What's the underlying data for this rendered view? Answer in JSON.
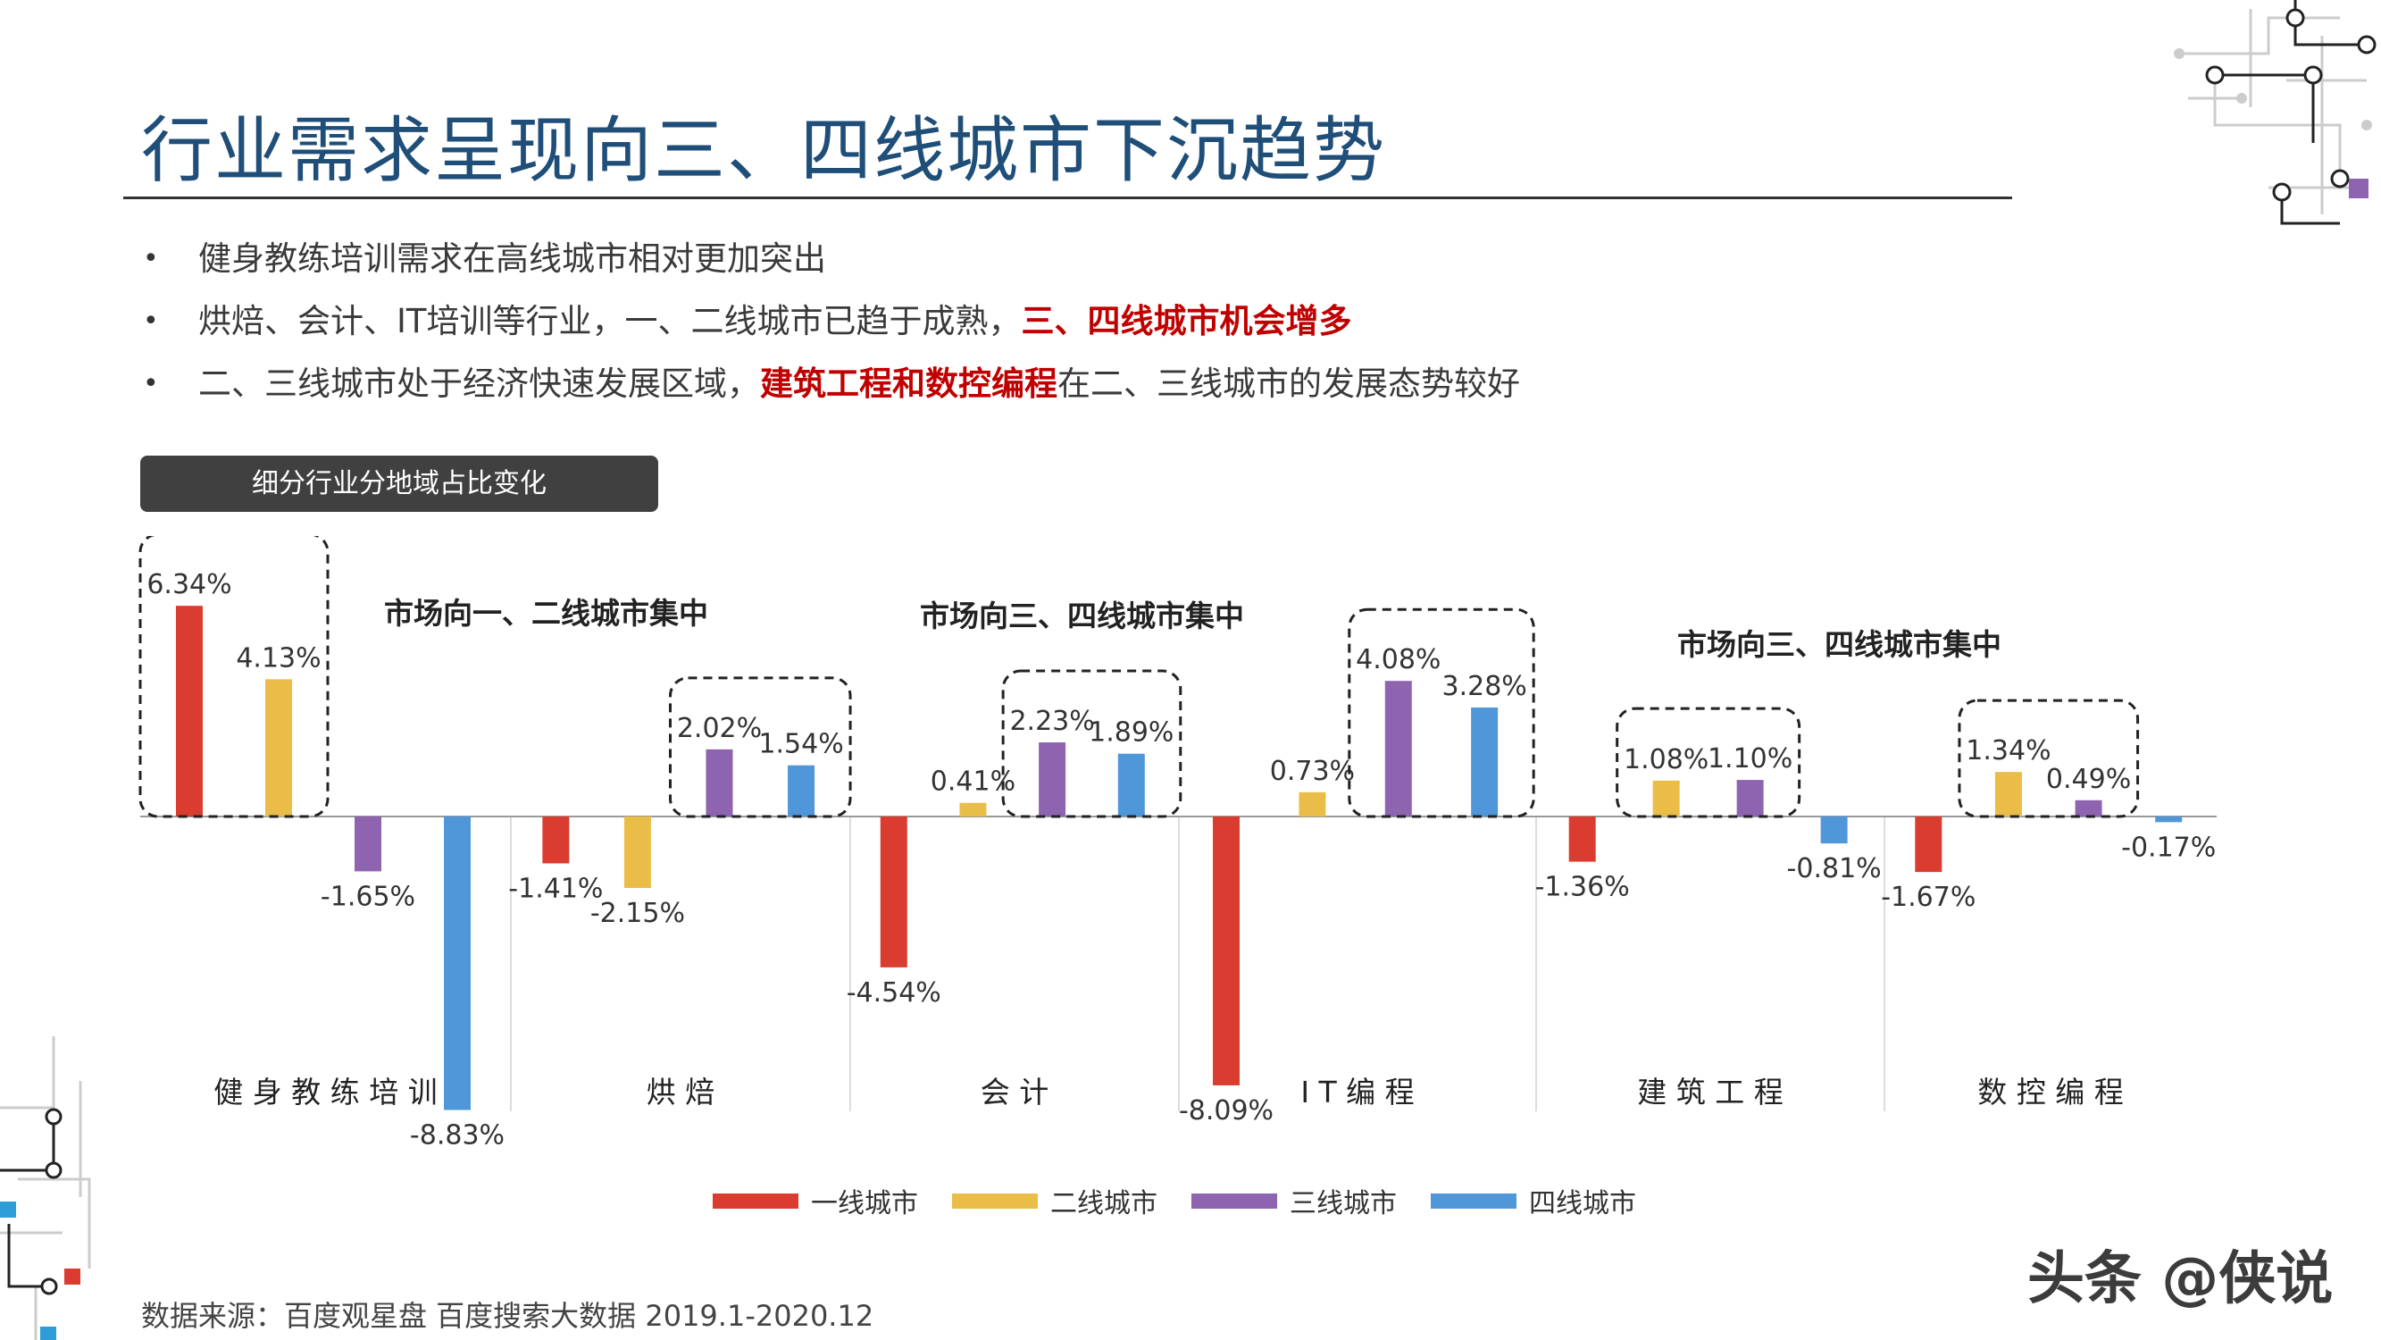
{
  "title": "行业需求呈现向三、四线城市下沉趋势",
  "bullets": [
    {
      "parts": [
        {
          "text": "健身教练培训需求在高线城市相对更加突出",
          "highlight": false
        }
      ]
    },
    {
      "parts": [
        {
          "text": "烘焙、会计、IT培训等行业，一、二线城市已趋于成熟，",
          "highlight": false
        },
        {
          "text": "三、四线城市机会增多",
          "highlight": true
        }
      ]
    },
    {
      "parts": [
        {
          "text": "二、三线城市处于经济快速发展区域，",
          "highlight": false
        },
        {
          "text": "建筑工程和数控编程",
          "highlight": true
        },
        {
          "text": "在二、三线城市的发展态势较好",
          "highlight": false
        }
      ]
    }
  ],
  "section_label": "细分行业分地域占比变化",
  "chart_data": {
    "type": "bar",
    "categories": [
      "健身教练培训",
      "烘焙",
      "会计",
      "IT编程",
      "建筑工程",
      "数控编程"
    ],
    "category_labels": [
      "健 身 教 练 培 训",
      "烘  焙",
      "会  计",
      "I T 编 程",
      "建 筑 工 程",
      "数 控 编 程"
    ],
    "series": [
      {
        "name": "一线城市",
        "color": "#db3c30",
        "values": [
          6.34,
          -1.41,
          -4.54,
          -8.09,
          -1.36,
          -1.67
        ],
        "labels": [
          "6.34%",
          "-1.41%",
          "-4.54%",
          "-8.09%",
          "-1.36%",
          "-1.67%"
        ]
      },
      {
        "name": "二线城市",
        "color": "#e9bd48",
        "values": [
          4.13,
          -2.15,
          0.41,
          0.73,
          1.08,
          1.34
        ],
        "labels": [
          "4.13%",
          "-2.15%",
          "0.41%",
          "0.73%",
          "1.08%",
          "1.34%"
        ]
      },
      {
        "name": "三线城市",
        "color": "#8e64b0",
        "values": [
          -1.65,
          2.02,
          2.23,
          4.08,
          1.1,
          0.49
        ],
        "labels": [
          "-1.65%",
          "2.02%",
          "2.23%",
          "4.08%",
          "1.10%",
          "0.49%"
        ]
      },
      {
        "name": "四线城市",
        "color": "#4f97d8",
        "values": [
          -8.83,
          1.54,
          1.89,
          3.28,
          -0.81,
          -0.17
        ],
        "labels": [
          "-8.83%",
          "1.54%",
          "1.89%",
          "3.28%",
          "-0.81%",
          "-0.17%"
        ]
      }
    ],
    "annotations": [
      {
        "text": "市场向一、二线城市集中",
        "group": 0
      },
      {
        "text": "市场向三、四线城市集中",
        "group": 2
      },
      {
        "text": "市场向三、四线城市集中",
        "group": 4
      }
    ],
    "highlight_boxes": [
      {
        "group": 0,
        "series": [
          0,
          1
        ]
      },
      {
        "group": 1,
        "series": [
          2,
          3
        ]
      },
      {
        "group": 2,
        "series": [
          2,
          3
        ]
      },
      {
        "group": 3,
        "series": [
          2,
          3
        ]
      },
      {
        "group": 4,
        "series": [
          1,
          2
        ]
      },
      {
        "group": 5,
        "series": [
          1,
          2
        ]
      }
    ],
    "legend_position": "bottom",
    "grid": false
  },
  "source": "数据来源：百度观星盘 百度搜索大数据 2019.1-2020.12",
  "watermark": "头条 @侠说"
}
